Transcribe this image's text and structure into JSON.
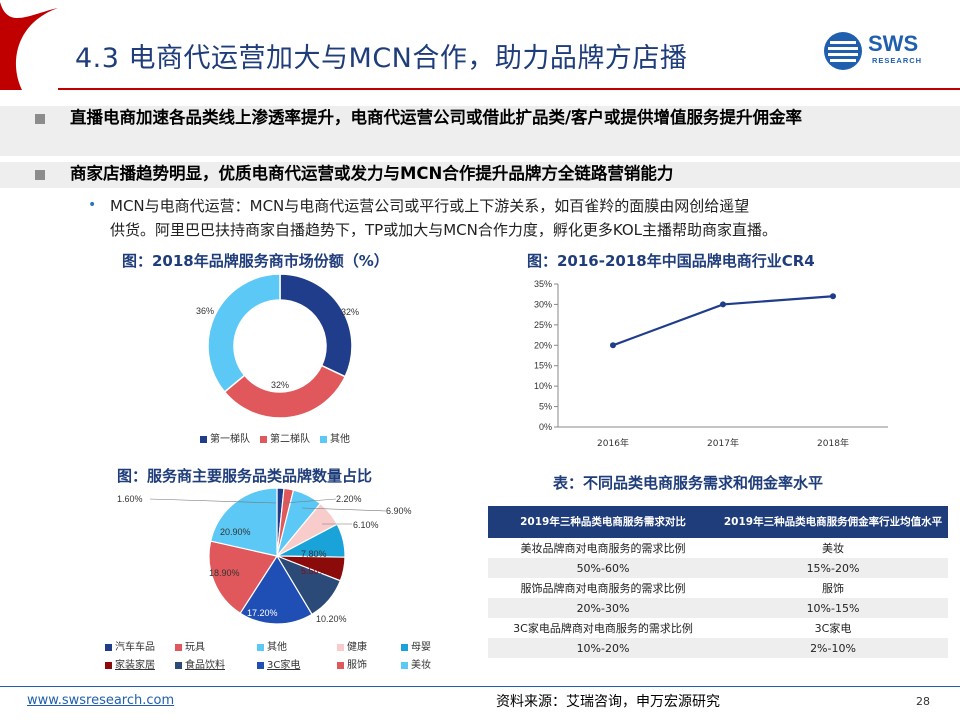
{
  "header": {
    "title": "4.3 电商代运营加大与MCN合作，助力品牌方店播",
    "logo_text": "SWS",
    "logo_sub": "RESEARCH"
  },
  "bullets": [
    {
      "text": "直播电商加速各品类线上渗透率提升，电商代运营公司或借此扩品类/客户或提供增值服务提升佣金率"
    },
    {
      "text": "商家店播趋势明显，优质电商代运营或发力与MCN合作提升品牌方全链路营销能力"
    }
  ],
  "sub_bullet": {
    "line1": "MCN与电商代运营：MCN与电商代运营公司或平行或上下游关系，如百雀羚的面膜由网创给遥望",
    "line2": "供货。阿里巴巴扶持商家自播趋势下，TP或加大与MCN合作力度，孵化更多KOL主播帮助商家直播。"
  },
  "chart1": {
    "caption": "图：2018年品牌服务商市场份额（%）",
    "labels": [
      "32%",
      "32%",
      "36%"
    ],
    "legend": [
      "第一梯队",
      "第二梯队",
      "其他"
    ],
    "colors": [
      "#1f3d8a",
      "#e0585b",
      "#5bc8f5"
    ]
  },
  "chart2": {
    "caption": "图：2016-2018年中国品牌电商行业CR4",
    "yticks": [
      "35%",
      "30%",
      "25%",
      "20%",
      "15%",
      "10%",
      "5%",
      "0%"
    ],
    "xticks": [
      "2016年",
      "2017年",
      "2018年"
    ],
    "color": "#1f3d8a"
  },
  "chart3": {
    "caption": "图：服务商主要服务品类品牌数量占比",
    "labels": [
      "1.60%",
      "2.20%",
      "6.90%",
      "6.10%",
      "7.80%",
      "5.50%",
      "10.20%",
      "17.20%",
      "18.90%",
      "20.90%"
    ],
    "legend": [
      "汽车车品",
      "玩具",
      "其他",
      "健康",
      "母婴",
      "家装家居",
      "食品饮料",
      "3C家电",
      "服饰",
      "美妆"
    ],
    "colors": [
      "#1f3d8a",
      "#e0585b",
      "#5bc8f5",
      "#f9cccc",
      "#1aa3d9",
      "#8b0a0a",
      "#2b4a78",
      "#1f4fb5",
      "#e0585b",
      "#5bc8f5"
    ]
  },
  "table": {
    "caption": "表：不同品类电商服务需求和佣金率水平",
    "headers": [
      "2019年三种品类电商服务需求对比",
      "2019年三种品类电商服务佣金率行业均值水平"
    ],
    "rows": [
      [
        "美妆品牌商对电商服务的需求比例",
        "美妆"
      ],
      [
        "50%-60%",
        "15%-20%"
      ],
      [
        "服饰品牌商对电商服务的需求比例",
        "服饰"
      ],
      [
        "20%-30%",
        "10%-15%"
      ],
      [
        "3C家电品牌商对电商服务的需求比例",
        "3C家电"
      ],
      [
        "10%-20%",
        "2%-10%"
      ]
    ]
  },
  "footer": {
    "link": "www.swsresearch.com",
    "source": "资料来源：艾瑞咨询，申万宏源研究",
    "page": "28"
  },
  "chart_data": [
    {
      "type": "pie",
      "title": "图：2018年品牌服务商市场份额（%）",
      "categories": [
        "第一梯队",
        "第二梯队",
        "其他"
      ],
      "values": [
        32,
        32,
        36
      ]
    },
    {
      "type": "line",
      "title": "图：2016-2018年中国品牌电商行业CR4",
      "x": [
        "2016年",
        "2017年",
        "2018年"
      ],
      "values": [
        20,
        30,
        32
      ],
      "ylim": [
        0,
        35
      ],
      "grid": false
    },
    {
      "type": "pie",
      "title": "图：服务商主要服务品类品牌数量占比",
      "categories": [
        "汽车车品",
        "玩具",
        "其他",
        "健康",
        "母婴",
        "家装家居",
        "食品饮料",
        "3C家电",
        "服饰",
        "美妆"
      ],
      "values": [
        1.6,
        2.2,
        6.9,
        6.1,
        7.8,
        5.5,
        10.2,
        17.2,
        18.9,
        20.9
      ]
    }
  ]
}
